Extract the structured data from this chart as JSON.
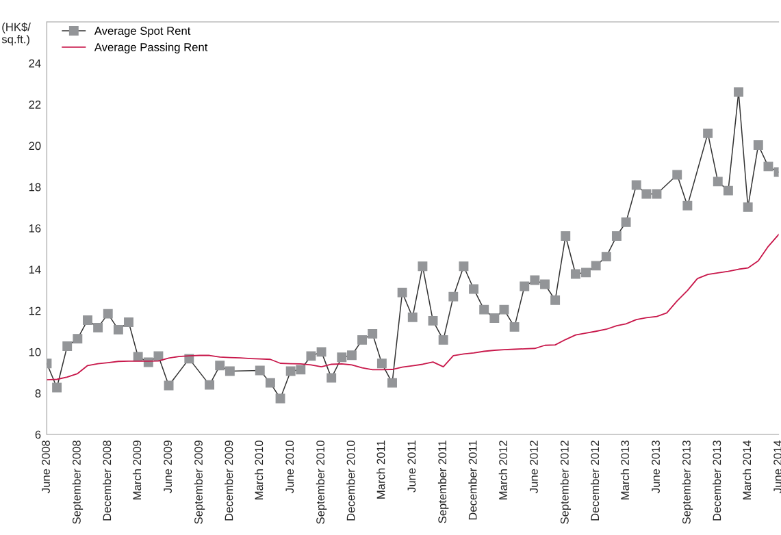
{
  "chart_data": {
    "type": "line",
    "ylabel": "(HK$/\nsq.ft.)",
    "ylim": [
      6,
      26
    ],
    "yticks": [
      6,
      8,
      10,
      12,
      14,
      16,
      18,
      20,
      22,
      24
    ],
    "xlim": [
      "2008-06",
      "2014-06"
    ],
    "xticks": [
      {
        "value": "2008-06",
        "label": "June 2008"
      },
      {
        "value": "2008-09",
        "label": "September 2008"
      },
      {
        "value": "2008-12",
        "label": "December 2008"
      },
      {
        "value": "2009-03",
        "label": "March 2009"
      },
      {
        "value": "2009-06",
        "label": "June 2009"
      },
      {
        "value": "2009-09",
        "label": "September 2009"
      },
      {
        "value": "2009-12",
        "label": "December 2009"
      },
      {
        "value": "2010-03",
        "label": "March 2010"
      },
      {
        "value": "2010-06",
        "label": "June 2010"
      },
      {
        "value": "2010-09",
        "label": "September 2010"
      },
      {
        "value": "2010-12",
        "label": "December 2010"
      },
      {
        "value": "2011-03",
        "label": "March 2011"
      },
      {
        "value": "2011-06",
        "label": "June 2011"
      },
      {
        "value": "2011-09",
        "label": "September 2011"
      },
      {
        "value": "2011-12",
        "label": "December 2011"
      },
      {
        "value": "2012-03",
        "label": "March 2012"
      },
      {
        "value": "2012-06",
        "label": "June 2012"
      },
      {
        "value": "2012-09",
        "label": "September 2012"
      },
      {
        "value": "2012-12",
        "label": "December 2012"
      },
      {
        "value": "2013-03",
        "label": "March 2013"
      },
      {
        "value": "2013-06",
        "label": "June 2013"
      },
      {
        "value": "2013-09",
        "label": "September 2013"
      },
      {
        "value": "2013-12",
        "label": "December 2013"
      },
      {
        "value": "2014-03",
        "label": "March 2014"
      },
      {
        "value": "2014-06",
        "label": "June 2014"
      }
    ],
    "legend": "top left",
    "grid": false,
    "series": [
      {
        "name": "Average Spot Rent",
        "color": "#939598",
        "marker": "square",
        "x": [
          "2008-06",
          "2008-07",
          "2008-08",
          "2008-09",
          "2008-10",
          "2008-11",
          "2008-12",
          "2009-01",
          "2009-02",
          "2009-03",
          "2009-04",
          "2009-05",
          "2009-06",
          "2009-08",
          "2009-10",
          "2009-11",
          "2009-12",
          "2010-03",
          "2010-04",
          "2010-05",
          "2010-06",
          "2010-07",
          "2010-08",
          "2010-09",
          "2010-10",
          "2010-11",
          "2010-12",
          "2011-01",
          "2011-02",
          "2011-03",
          "2011-04",
          "2011-05",
          "2011-06",
          "2011-07",
          "2011-08",
          "2011-09",
          "2011-10",
          "2011-11",
          "2011-12",
          "2012-01",
          "2012-02",
          "2012-03",
          "2012-04",
          "2012-05",
          "2012-06",
          "2012-07",
          "2012-08",
          "2012-09",
          "2012-10",
          "2012-11",
          "2012-12",
          "2013-01",
          "2013-02",
          "2013-03",
          "2013-04",
          "2013-05",
          "2013-06",
          "2013-08",
          "2013-09",
          "2013-11",
          "2013-12",
          "2014-01",
          "2014-02",
          "2014-03",
          "2014-04",
          "2014-05",
          "2014-06"
        ],
        "values": [
          9.44,
          8.27,
          10.28,
          10.64,
          11.54,
          11.18,
          11.85,
          11.08,
          11.44,
          9.77,
          9.5,
          9.8,
          8.37,
          9.67,
          8.4,
          9.34,
          9.07,
          9.1,
          8.5,
          7.74,
          9.07,
          9.14,
          9.8,
          10.0,
          8.74,
          9.74,
          9.84,
          10.58,
          10.88,
          9.44,
          8.5,
          12.88,
          11.68,
          14.15,
          11.51,
          10.58,
          12.68,
          14.15,
          13.05,
          12.05,
          11.64,
          12.05,
          11.21,
          13.18,
          13.48,
          13.28,
          12.51,
          15.62,
          13.78,
          13.85,
          14.18,
          14.62,
          15.62,
          16.29,
          18.09,
          17.66,
          17.66,
          18.59,
          17.09,
          20.6,
          18.26,
          17.82,
          22.6,
          17.02,
          20.03,
          18.99,
          18.72
        ]
      },
      {
        "name": "Average Passing Rent",
        "color": "#c8174a",
        "marker": "none",
        "x": [
          "2008-06",
          "2008-07",
          "2008-08",
          "2008-09",
          "2008-10",
          "2008-11",
          "2008-12",
          "2009-01",
          "2009-02",
          "2009-03",
          "2009-04",
          "2009-05",
          "2009-06",
          "2009-07",
          "2009-08",
          "2009-09",
          "2009-10",
          "2009-11",
          "2009-12",
          "2010-01",
          "2010-02",
          "2010-03",
          "2010-04",
          "2010-05",
          "2010-06",
          "2010-07",
          "2010-08",
          "2010-09",
          "2010-10",
          "2010-11",
          "2010-12",
          "2011-01",
          "2011-02",
          "2011-03",
          "2011-04",
          "2011-05",
          "2011-06",
          "2011-07",
          "2011-08",
          "2011-09",
          "2011-10",
          "2011-11",
          "2011-12",
          "2012-01",
          "2012-02",
          "2012-03",
          "2012-04",
          "2012-05",
          "2012-06",
          "2012-07",
          "2012-08",
          "2012-09",
          "2012-10",
          "2012-11",
          "2012-12",
          "2013-01",
          "2013-02",
          "2013-03",
          "2013-04",
          "2013-05",
          "2013-06",
          "2013-07",
          "2013-08",
          "2013-09",
          "2013-10",
          "2013-11",
          "2013-12",
          "2014-01",
          "2014-02",
          "2014-03",
          "2014-04",
          "2014-05",
          "2014-06"
        ],
        "values": [
          8.65,
          8.67,
          8.78,
          8.95,
          9.34,
          9.43,
          9.48,
          9.54,
          9.55,
          9.55,
          9.55,
          9.56,
          9.7,
          9.78,
          9.81,
          9.83,
          9.83,
          9.75,
          9.73,
          9.71,
          9.68,
          9.66,
          9.64,
          9.45,
          9.43,
          9.42,
          9.37,
          9.28,
          9.4,
          9.42,
          9.37,
          9.23,
          9.14,
          9.14,
          9.15,
          9.26,
          9.33,
          9.4,
          9.51,
          9.28,
          9.82,
          9.9,
          9.95,
          10.03,
          10.08,
          10.11,
          10.13,
          10.15,
          10.17,
          10.32,
          10.34,
          10.6,
          10.82,
          10.91,
          11.0,
          11.1,
          11.27,
          11.36,
          11.57,
          11.66,
          11.72,
          11.89,
          12.47,
          12.98,
          13.56,
          13.76,
          13.83,
          13.91,
          14.01,
          14.07,
          14.42,
          15.12,
          15.69
        ]
      }
    ]
  }
}
